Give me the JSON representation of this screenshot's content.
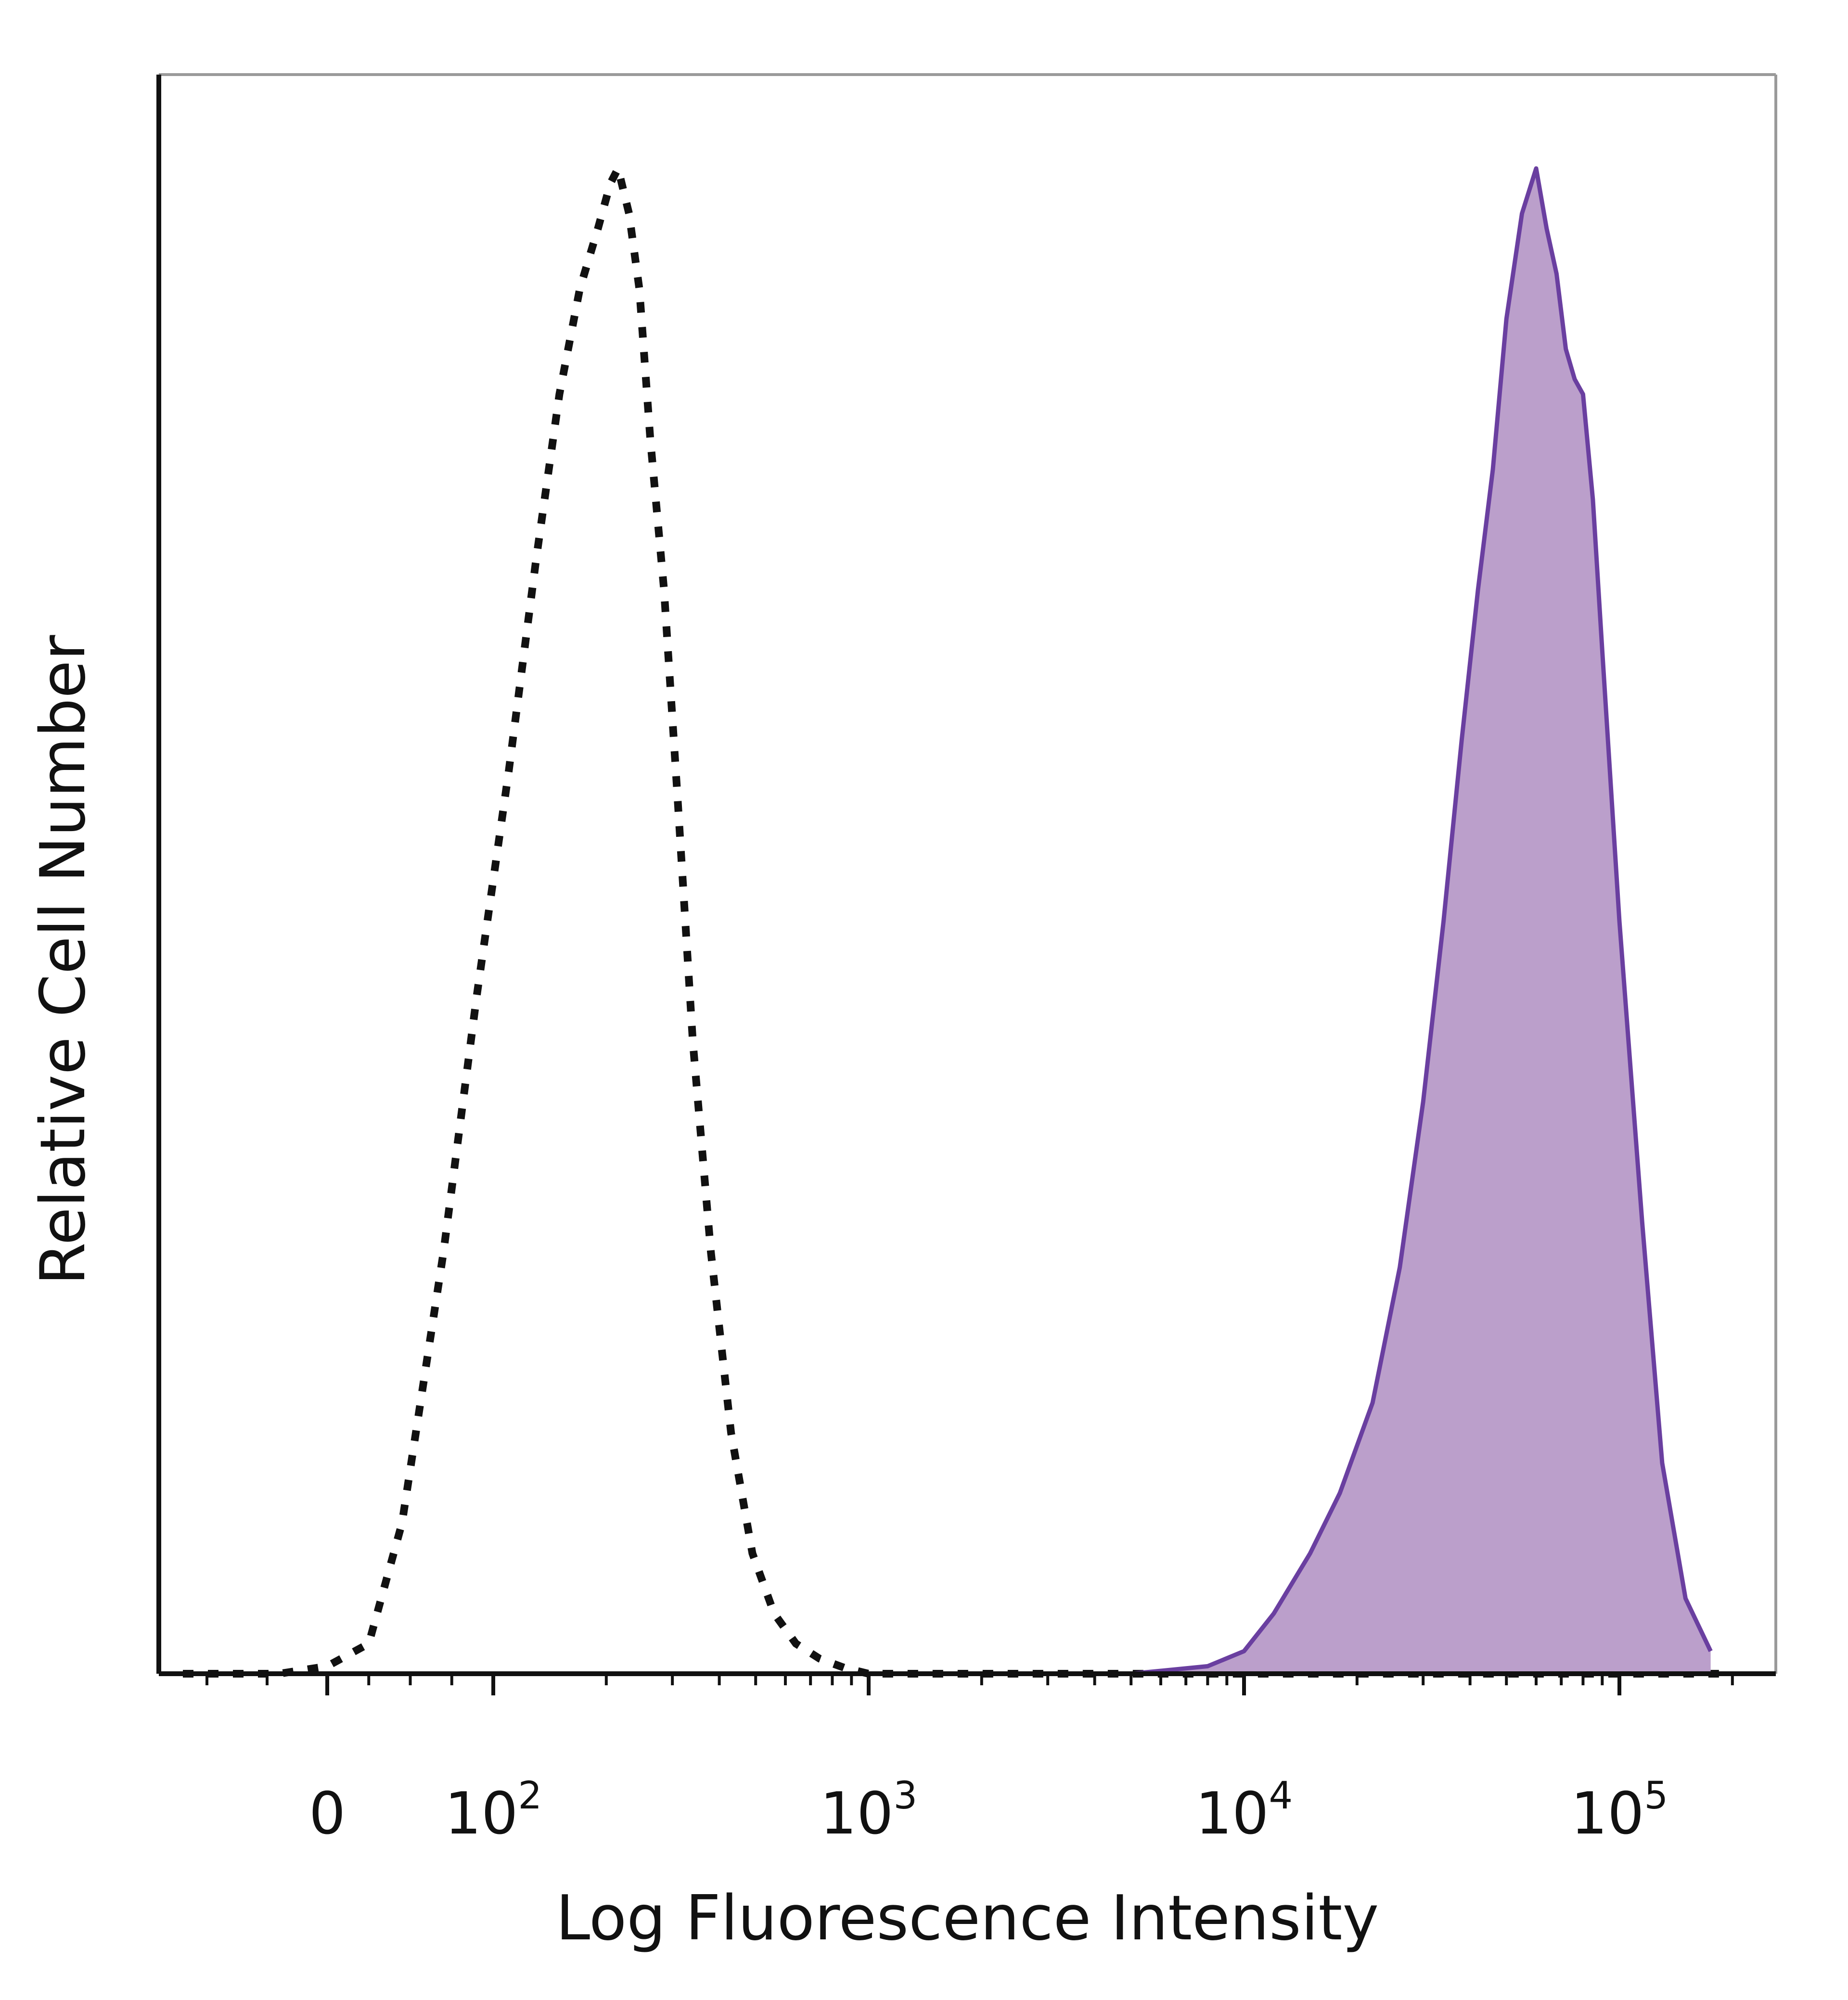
{
  "chart_data": {
    "type": "area",
    "title": "",
    "xlabel": "Log Fluorescence Intensity",
    "ylabel": "Relative Cell Number",
    "x_scale": "biexponential",
    "xlim": [
      -60,
      200000
    ],
    "ylim": [
      0,
      1.05
    ],
    "grid": false,
    "x_ticks": [
      {
        "value": 0,
        "base": "0",
        "exp": ""
      },
      {
        "value": 100,
        "base": "10",
        "exp": "2"
      },
      {
        "value": 1000,
        "base": "10",
        "exp": "3"
      },
      {
        "value": 10000,
        "base": "10",
        "exp": "4"
      },
      {
        "value": 100000,
        "base": "10",
        "exp": "5"
      }
    ],
    "series": [
      {
        "style": "dotted-line",
        "color": "#111111",
        "x": [
          -60,
          -20,
          0,
          25,
          45,
          70,
          90,
          110,
          130,
          150,
          170,
          190,
          205,
          215,
          230,
          245,
          262,
          285,
          310,
          340,
          380,
          430,
          490,
          560,
          640,
          740,
          860,
          1000,
          2000,
          5000,
          10000,
          50000,
          200000
        ],
        "y": [
          0.0,
          0.0,
          0.005,
          0.02,
          0.1,
          0.28,
          0.45,
          0.6,
          0.74,
          0.85,
          0.92,
          0.96,
          0.99,
          1.0,
          0.97,
          0.92,
          0.82,
          0.72,
          0.58,
          0.42,
          0.28,
          0.16,
          0.08,
          0.04,
          0.02,
          0.01,
          0.004,
          0.0,
          0.0,
          0.0,
          0.0,
          0.0,
          0.0
        ]
      },
      {
        "style": "filled-area",
        "color": "#6a3fa0",
        "fill": "#bb9fcb",
        "x": [
          -60,
          0,
          1000,
          5000,
          8000,
          10000,
          12000,
          15000,
          18000,
          22000,
          26000,
          30000,
          34000,
          38000,
          42000,
          46000,
          50000,
          55000,
          60000,
          64000,
          68000,
          72000,
          76000,
          80000,
          85000,
          90000,
          100000,
          115000,
          130000,
          150000,
          175000
        ],
        "y": [
          0.0,
          0.0,
          0.0,
          0.0,
          0.005,
          0.015,
          0.04,
          0.08,
          0.12,
          0.18,
          0.27,
          0.38,
          0.5,
          0.62,
          0.72,
          0.8,
          0.9,
          0.97,
          1.0,
          0.96,
          0.93,
          0.88,
          0.86,
          0.85,
          0.78,
          0.68,
          0.5,
          0.3,
          0.14,
          0.05,
          0.015
        ]
      }
    ]
  }
}
